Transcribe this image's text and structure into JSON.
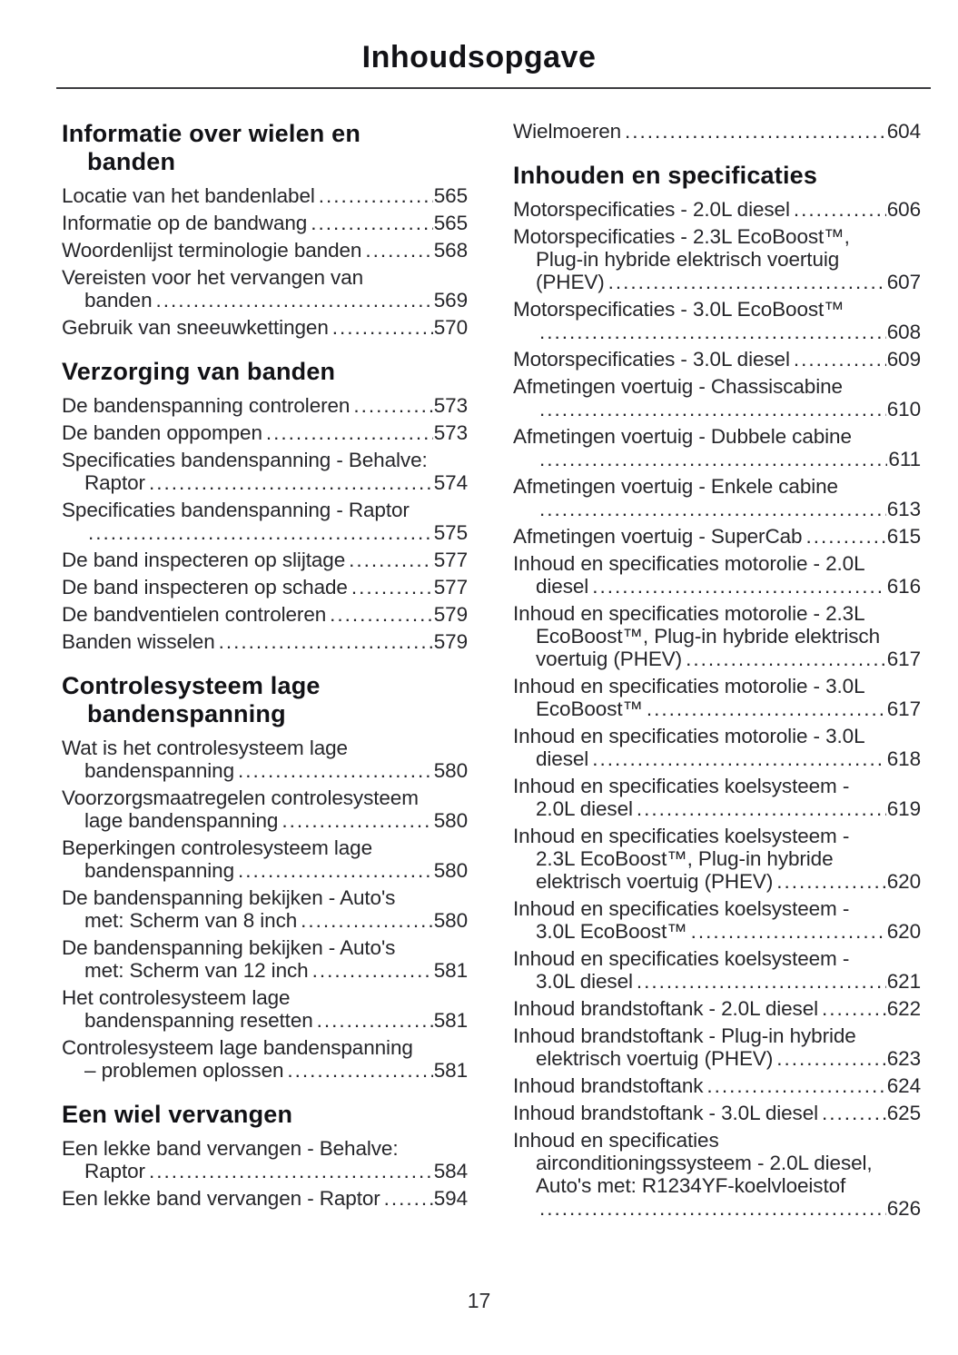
{
  "page": {
    "title": "Inhoudsopgave",
    "page_number": "17"
  },
  "colors": {
    "ink": "#26262a",
    "heading_ink": "#121216",
    "rule": "#3c3c40"
  },
  "columns": [
    {
      "sections": [
        {
          "heading": [
            "Informatie over wielen en",
            "banden"
          ],
          "items": [
            {
              "lines": [
                "Locatie van het bandenlabel"
              ],
              "page": "565"
            },
            {
              "lines": [
                "Informatie op de bandwang"
              ],
              "page": "565"
            },
            {
              "lines": [
                "Woordenlijst terminologie banden"
              ],
              "page": "568"
            },
            {
              "lines": [
                "Vereisten voor het vervangen van",
                "banden"
              ],
              "page": "569"
            },
            {
              "lines": [
                "Gebruik van sneeuwkettingen"
              ],
              "page": "570"
            }
          ]
        },
        {
          "heading": [
            "Verzorging van banden"
          ],
          "items": [
            {
              "lines": [
                "De bandenspanning controleren"
              ],
              "page": "573"
            },
            {
              "lines": [
                "De banden oppompen"
              ],
              "page": "573"
            },
            {
              "lines": [
                "Specificaties bandenspanning - Behalve:",
                "Raptor"
              ],
              "page": "574"
            },
            {
              "lines": [
                "Specificaties bandenspanning - Raptor",
                ""
              ],
              "page": "575"
            },
            {
              "lines": [
                "De band inspecteren op slijtage"
              ],
              "page": "577"
            },
            {
              "lines": [
                "De band inspecteren op schade"
              ],
              "page": "577"
            },
            {
              "lines": [
                "De bandventielen controleren"
              ],
              "page": "579"
            },
            {
              "lines": [
                "Banden wisselen"
              ],
              "page": "579"
            }
          ]
        },
        {
          "heading": [
            "Controlesysteem lage",
            "bandenspanning"
          ],
          "items": [
            {
              "lines": [
                "Wat is het controlesysteem lage",
                "bandenspanning"
              ],
              "page": "580"
            },
            {
              "lines": [
                "Voorzorgsmaatregelen controlesysteem",
                "lage bandenspanning"
              ],
              "page": "580"
            },
            {
              "lines": [
                "Beperkingen controlesysteem lage",
                "bandenspanning"
              ],
              "page": "580"
            },
            {
              "lines": [
                "De bandenspanning bekijken - Auto's",
                "met: Scherm van 8 inch"
              ],
              "page": "580"
            },
            {
              "lines": [
                "De bandenspanning bekijken - Auto's",
                "met: Scherm van 12 inch"
              ],
              "page": "581"
            },
            {
              "lines": [
                "Het controlesysteem lage",
                "bandenspanning resetten"
              ],
              "page": "581"
            },
            {
              "lines": [
                "Controlesysteem lage bandenspanning",
                "– problemen oplossen"
              ],
              "page": "581"
            }
          ]
        },
        {
          "heading": [
            "Een wiel vervangen"
          ],
          "items": [
            {
              "lines": [
                "Een lekke band vervangen - Behalve:",
                "Raptor"
              ],
              "page": "584"
            },
            {
              "lines": [
                "Een lekke band vervangen - Raptor"
              ],
              "page": "594"
            }
          ]
        }
      ]
    },
    {
      "sections": [
        {
          "heading": null,
          "items": [
            {
              "lines": [
                "Wielmoeren"
              ],
              "page": "604"
            }
          ]
        },
        {
          "heading": [
            "Inhouden en specificaties"
          ],
          "items": [
            {
              "lines": [
                "Motorspecificaties - 2.0L diesel"
              ],
              "page": "606"
            },
            {
              "lines": [
                "Motorspecificaties - 2.3L EcoBoost™,",
                "Plug-in hybride elektrisch voertuig",
                "(PHEV)"
              ],
              "page": "607"
            },
            {
              "lines": [
                "Motorspecificaties - 3.0L EcoBoost™",
                ""
              ],
              "page": "608"
            },
            {
              "lines": [
                "Motorspecificaties - 3.0L diesel"
              ],
              "page": "609"
            },
            {
              "lines": [
                "Afmetingen voertuig - Chassiscabine",
                ""
              ],
              "page": "610"
            },
            {
              "lines": [
                "Afmetingen voertuig - Dubbele cabine",
                ""
              ],
              "page": "611"
            },
            {
              "lines": [
                "Afmetingen voertuig - Enkele cabine",
                ""
              ],
              "page": "613"
            },
            {
              "lines": [
                "Afmetingen voertuig - SuperCab"
              ],
              "page": "615"
            },
            {
              "lines": [
                "Inhoud en specificaties motorolie - 2.0L",
                "diesel"
              ],
              "page": "616"
            },
            {
              "lines": [
                "Inhoud en specificaties motorolie - 2.3L",
                "EcoBoost™, Plug-in hybride elektrisch",
                "voertuig (PHEV)"
              ],
              "page": "617"
            },
            {
              "lines": [
                "Inhoud en specificaties motorolie - 3.0L",
                "EcoBoost™"
              ],
              "page": "617"
            },
            {
              "lines": [
                "Inhoud en specificaties motorolie - 3.0L",
                "diesel"
              ],
              "page": "618"
            },
            {
              "lines": [
                "Inhoud en specificaties koelsysteem -",
                "2.0L diesel"
              ],
              "page": "619"
            },
            {
              "lines": [
                "Inhoud en specificaties koelsysteem -",
                "2.3L EcoBoost™, Plug-in hybride",
                "elektrisch voertuig (PHEV)"
              ],
              "page": "620"
            },
            {
              "lines": [
                "Inhoud en specificaties koelsysteem -",
                "3.0L EcoBoost™"
              ],
              "page": "620"
            },
            {
              "lines": [
                "Inhoud en specificaties koelsysteem -",
                "3.0L diesel"
              ],
              "page": "621"
            },
            {
              "lines": [
                "Inhoud brandstoftank - 2.0L diesel"
              ],
              "page": "622"
            },
            {
              "lines": [
                "Inhoud brandstoftank - Plug-in hybride",
                "elektrisch voertuig (PHEV)"
              ],
              "page": "623"
            },
            {
              "lines": [
                "Inhoud brandstoftank"
              ],
              "page": "624"
            },
            {
              "lines": [
                "Inhoud brandstoftank - 3.0L diesel"
              ],
              "page": "625"
            },
            {
              "lines": [
                "Inhoud en specificaties",
                "airconditioningssysteem - 2.0L diesel,",
                "Auto's met: R1234YF-koelvloeistof",
                ""
              ],
              "page": "626"
            }
          ]
        }
      ]
    }
  ]
}
